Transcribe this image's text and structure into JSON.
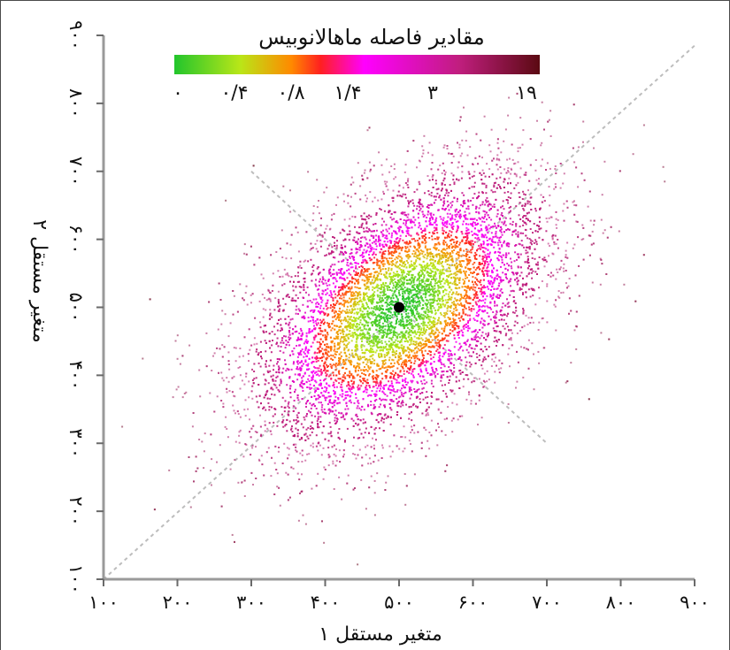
{
  "chart_data": {
    "type": "scatter",
    "xlabel": "متغیر مستقل ۱",
    "ylabel": "متغیر مستقل ۲",
    "xlim": [
      100,
      900
    ],
    "ylim": [
      100,
      900
    ],
    "x_ticks": [
      100,
      200,
      300,
      400,
      500,
      600,
      700,
      800,
      900
    ],
    "x_tick_labels": [
      "۱۰۰",
      "۲۰۰",
      "۳۰۰",
      "۴۰۰",
      "۵۰۰",
      "۶۰۰",
      "۷۰۰",
      "۸۰۰",
      "۹۰۰"
    ],
    "y_ticks": [
      100,
      200,
      300,
      400,
      500,
      600,
      700,
      800,
      900
    ],
    "y_tick_labels": [
      "۱۰۰",
      "۲۰۰",
      "۳۰۰",
      "۴۰۰",
      "۵۰۰",
      "۶۰۰",
      "۷۰۰",
      "۸۰۰",
      "۹۰۰"
    ],
    "grid": false,
    "center": {
      "x": 500,
      "y": 500
    },
    "principal_axis_line": {
      "x": [
        100,
        900
      ],
      "y": [
        100,
        885
      ]
    },
    "minor_axis_line": {
      "x": [
        300,
        700
      ],
      "y": [
        700,
        300
      ]
    },
    "point_cloud": {
      "distribution": "bivariate normal",
      "mean": [
        500,
        500
      ],
      "sd": [
        100,
        100
      ],
      "correlation": 0.5,
      "approx_points": 9000
    },
    "colorbar": {
      "title": "مقادیر فاصله ماهالانوبیس",
      "placement": "top",
      "tick_labels": [
        "۰",
        "۰/۴",
        "۰/۸",
        "۱/۴",
        "۳",
        "۱۹"
      ],
      "tick_values": [
        0,
        0.4,
        0.8,
        1.4,
        3,
        19
      ],
      "colors": [
        "#22c52c",
        "#b9e618",
        "#ff8a00",
        "#ff2020",
        "#ff00ff",
        "#c01e7e",
        "#5b0a12"
      ]
    }
  }
}
